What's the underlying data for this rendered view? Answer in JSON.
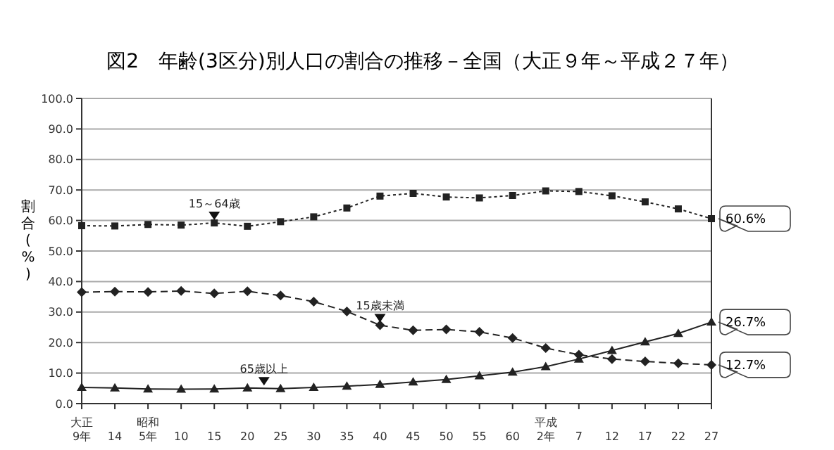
{
  "chart_data": {
    "type": "line",
    "title": "図2　年齢(3区分)別人口の割合の推移－全国（大正９年～平成２７年）",
    "ylabel": "割合(%)",
    "categories": [
      "大正\n9年",
      "14",
      "昭和\n5年",
      "10",
      "15",
      "20",
      "25",
      "30",
      "35",
      "40",
      "45",
      "50",
      "55",
      "60",
      "平成\n2年",
      "7",
      "12",
      "17",
      "22",
      "27"
    ],
    "ylim": [
      0,
      100
    ],
    "yticks": [
      {
        "value": 0,
        "label": "0.0"
      },
      {
        "value": 10,
        "label": "10.0"
      },
      {
        "value": 20,
        "label": "20.0"
      },
      {
        "value": 30,
        "label": "30.0"
      },
      {
        "value": 40,
        "label": "40.0"
      },
      {
        "value": 50,
        "label": "50.0"
      },
      {
        "value": 60,
        "label": "60.0"
      },
      {
        "value": 70,
        "label": "70.0"
      },
      {
        "value": 80,
        "label": "80.0"
      },
      {
        "value": 90,
        "label": "90.0"
      },
      {
        "value": 100,
        "label": "100.0"
      }
    ],
    "grid": "y",
    "series": [
      {
        "name": "15～64歳",
        "color": "#222222",
        "marker": "square",
        "line_style": "dotted",
        "values": [
          58.3,
          58.2,
          58.7,
          58.5,
          59.2,
          58.1,
          59.6,
          61.2,
          64.1,
          68.0,
          68.9,
          67.7,
          67.4,
          68.2,
          69.7,
          69.5,
          68.1,
          66.1,
          63.8,
          60.6
        ],
        "value_labels": [
          null,
          null,
          null,
          null,
          null,
          null,
          null,
          null,
          null,
          null,
          null,
          null,
          null,
          null,
          null,
          null,
          null,
          null,
          null,
          "60.6%"
        ]
      },
      {
        "name": "15歳未満",
        "color": "#222222",
        "marker": "diamond",
        "line_style": "dashed",
        "values": [
          36.5,
          36.7,
          36.6,
          36.9,
          36.1,
          36.8,
          35.4,
          33.4,
          30.2,
          25.7,
          24.0,
          24.3,
          23.5,
          21.5,
          18.2,
          16.0,
          14.6,
          13.8,
          13.2,
          12.7
        ],
        "value_labels": [
          null,
          null,
          null,
          null,
          null,
          null,
          null,
          null,
          null,
          null,
          null,
          null,
          null,
          null,
          null,
          null,
          null,
          null,
          null,
          "12.7%"
        ]
      },
      {
        "name": "65歳以上",
        "color": "#222222",
        "marker": "triangle",
        "line_style": "solid",
        "values": [
          5.3,
          5.1,
          4.8,
          4.7,
          4.8,
          5.1,
          4.9,
          5.3,
          5.7,
          6.3,
          7.1,
          7.9,
          9.1,
          10.3,
          12.1,
          14.6,
          17.4,
          20.2,
          23.0,
          26.7
        ],
        "value_labels": [
          null,
          null,
          null,
          null,
          null,
          null,
          null,
          null,
          null,
          null,
          null,
          null,
          null,
          null,
          null,
          null,
          null,
          null,
          null,
          "26.7%"
        ]
      }
    ]
  }
}
